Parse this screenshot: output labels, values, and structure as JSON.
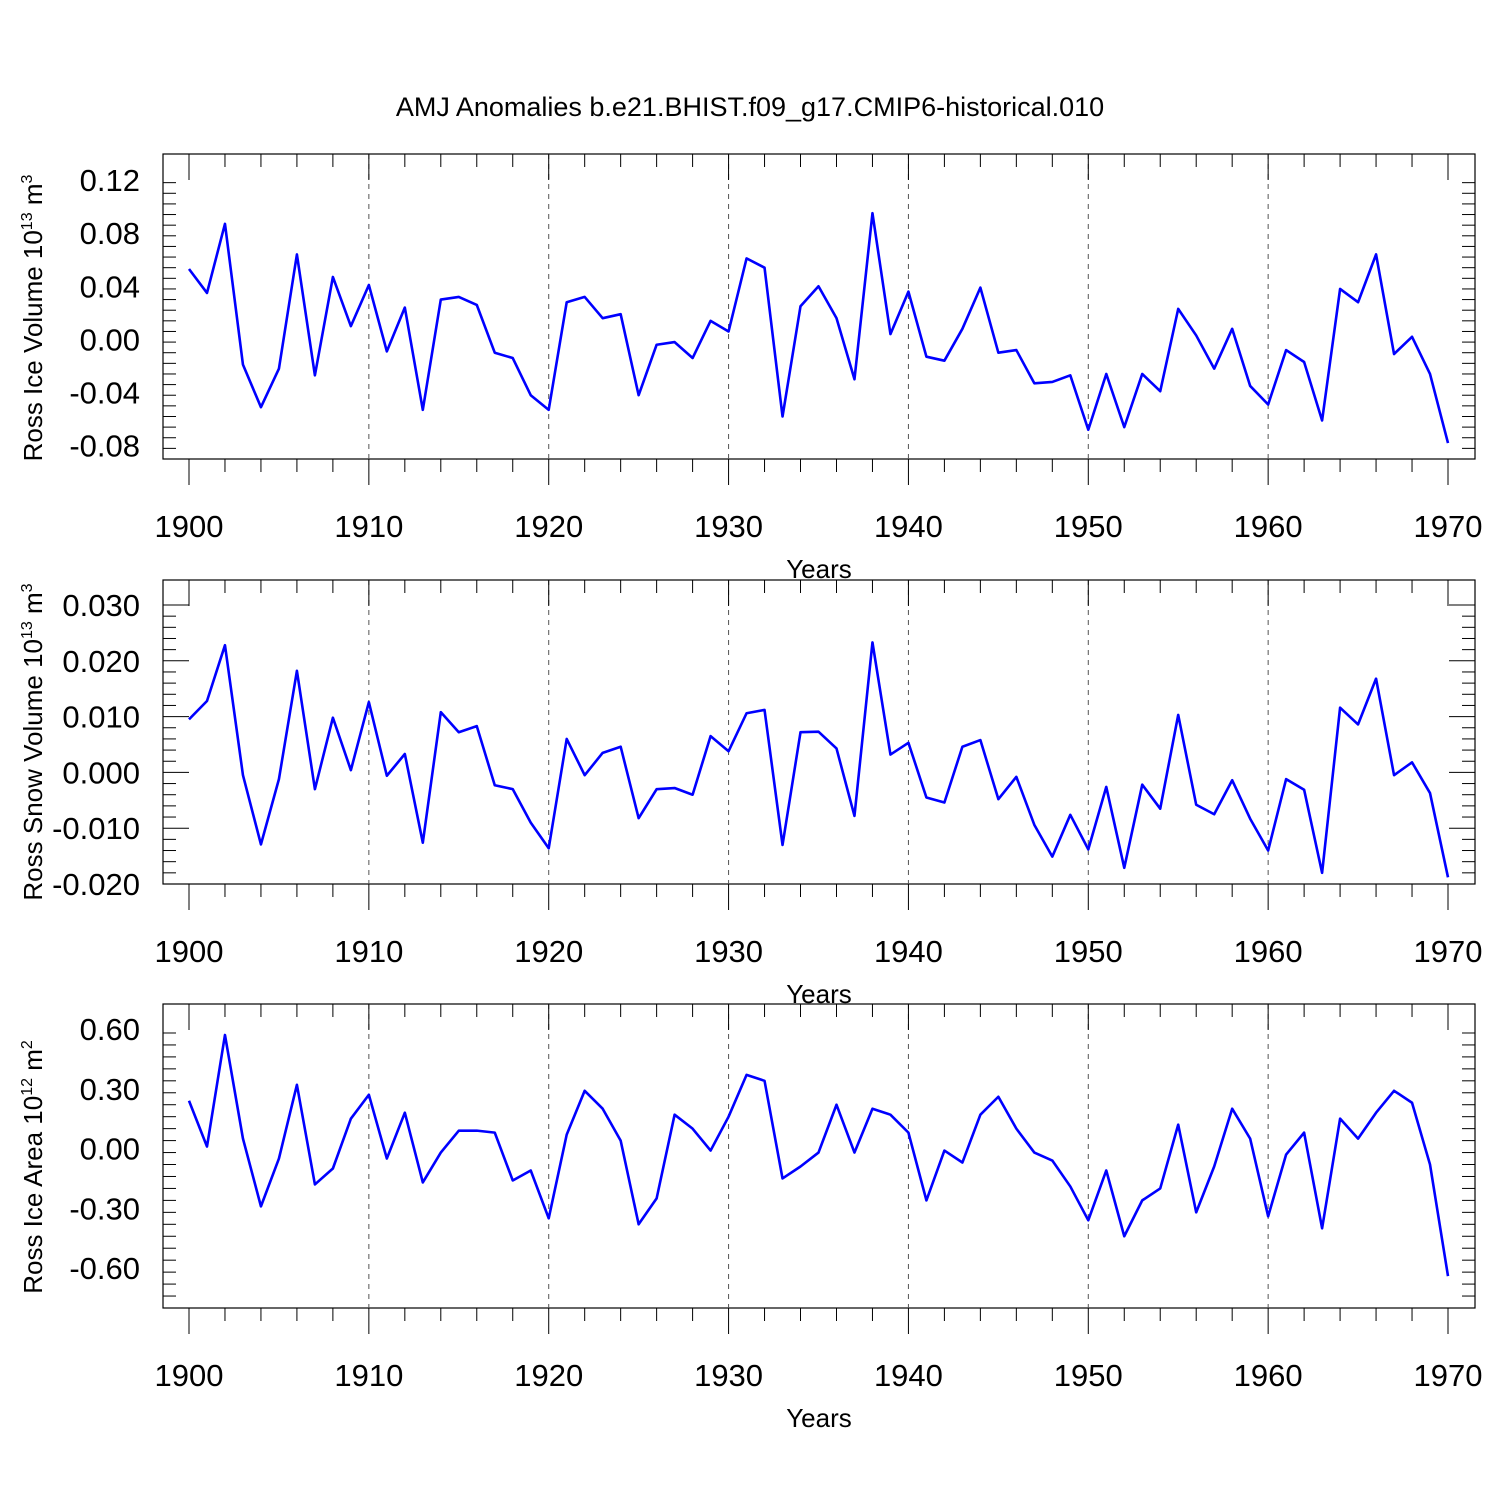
{
  "title": "AMJ Anomalies b.e21.BHIST.f09_g17.CMIP6-historical.010",
  "chart_data": [
    {
      "type": "line",
      "ylabel": "Ross Ice Volume 10",
      "ylabel_exp": "13",
      "ylabel_unit": " m",
      "ylabel_unit_exp": "3",
      "xlabel": "Years",
      "xlim": [
        1900,
        1970
      ],
      "ylim": [
        -0.09,
        0.12
      ],
      "xticks": [
        1900,
        1910,
        1920,
        1930,
        1940,
        1950,
        1960,
        1970
      ],
      "xtick_labels": [
        "1900",
        "1910",
        "1920",
        "1930",
        "1940",
        "1950",
        "1960",
        "1970"
      ],
      "yticks": [
        -0.08,
        -0.04,
        0.0,
        0.04,
        0.08,
        0.12
      ],
      "ytick_labels": [
        "-0.08",
        "-0.04",
        "0.00",
        "0.04",
        "0.08",
        "0.12"
      ],
      "grid": "vertical dashed at major x ticks",
      "color": "#0000ff",
      "x_start": 1900,
      "values": [
        0.053,
        0.035,
        0.087,
        -0.019,
        -0.051,
        -0.022,
        0.064,
        -0.027,
        0.047,
        0.01,
        0.041,
        -0.009,
        0.024,
        -0.053,
        0.03,
        0.032,
        0.026,
        -0.01,
        -0.014,
        -0.042,
        -0.053,
        0.028,
        0.032,
        0.016,
        0.019,
        -0.042,
        -0.004,
        -0.002,
        -0.014,
        0.014,
        0.006,
        0.061,
        0.054,
        -0.058,
        0.025,
        0.04,
        0.016,
        -0.03,
        0.095,
        0.004,
        0.036,
        -0.013,
        -0.016,
        0.008,
        0.039,
        -0.01,
        -0.008,
        -0.033,
        -0.032,
        -0.027,
        -0.068,
        -0.026,
        -0.066,
        -0.026,
        -0.039,
        0.023,
        0.003,
        -0.022,
        0.008,
        -0.035,
        -0.049,
        -0.008,
        -0.017,
        -0.061,
        0.038,
        0.028,
        0.064,
        -0.011,
        0.002,
        -0.026,
        -0.078
      ]
    },
    {
      "type": "line",
      "ylabel": "Ross Snow Volume 10",
      "ylabel_exp": "13",
      "ylabel_unit": " m",
      "ylabel_unit_exp": "3",
      "xlabel": "Years",
      "xlim": [
        1900,
        1970
      ],
      "ylim": [
        -0.02,
        0.03
      ],
      "xticks": [
        1900,
        1910,
        1920,
        1930,
        1940,
        1950,
        1960,
        1970
      ],
      "xtick_labels": [
        "1900",
        "1910",
        "1920",
        "1930",
        "1940",
        "1950",
        "1960",
        "1970"
      ],
      "yticks": [
        -0.02,
        -0.01,
        0.0,
        0.01,
        0.02,
        0.03
      ],
      "ytick_labels": [
        "-0.020",
        "-0.010",
        "0.000",
        "0.010",
        "0.020",
        "0.030"
      ],
      "grid": "vertical dashed at major x ticks",
      "color": "#0000ff",
      "x_start": 1900,
      "values": [
        0.0095,
        0.0128,
        0.0228,
        -0.0005,
        -0.0129,
        -0.0012,
        0.0182,
        -0.003,
        0.0098,
        0.0004,
        0.0126,
        -0.0006,
        0.0033,
        -0.0126,
        0.0108,
        0.0072,
        0.0083,
        -0.0023,
        -0.003,
        -0.009,
        -0.0136,
        0.006,
        -0.0005,
        0.0035,
        0.0046,
        -0.0082,
        -0.003,
        -0.0028,
        -0.004,
        0.0065,
        0.0038,
        0.0106,
        0.0112,
        -0.013,
        0.0072,
        0.0073,
        0.0043,
        -0.0078,
        0.0233,
        0.0032,
        0.0053,
        -0.0045,
        -0.0054,
        0.0046,
        0.0058,
        -0.0048,
        -0.0008,
        -0.0094,
        -0.0151,
        -0.0076,
        -0.0138,
        -0.0026,
        -0.0171,
        -0.0022,
        -0.0065,
        0.0103,
        -0.0058,
        -0.0075,
        -0.0014,
        -0.0083,
        -0.014,
        -0.0012,
        -0.0031,
        -0.018,
        0.0116,
        0.0086,
        0.0168,
        -0.0005,
        0.0018,
        -0.0037,
        -0.0188
      ]
    },
    {
      "type": "line",
      "ylabel": "Ross Ice Area 10",
      "ylabel_exp": "12",
      "ylabel_unit": " m",
      "ylabel_unit_exp": "2",
      "xlabel": "Years",
      "xlim": [
        1900,
        1970
      ],
      "ylim": [
        -0.8,
        0.6
      ],
      "xticks": [
        1900,
        1910,
        1920,
        1930,
        1940,
        1950,
        1960,
        1970
      ],
      "xtick_labels": [
        "1900",
        "1910",
        "1920",
        "1930",
        "1940",
        "1950",
        "1960",
        "1970"
      ],
      "yticks": [
        -0.6,
        -0.3,
        0.0,
        0.3,
        0.6
      ],
      "ytick_labels": [
        "-0.60",
        "-0.30",
        "0.00",
        "0.30",
        "0.60"
      ],
      "grid": "vertical dashed at major x ticks",
      "color": "#0000ff",
      "x_start": 1900,
      "values": [
        0.24,
        0.01,
        0.57,
        0.05,
        -0.29,
        -0.05,
        0.32,
        -0.18,
        -0.1,
        0.15,
        0.27,
        -0.05,
        0.18,
        -0.17,
        -0.02,
        0.09,
        0.09,
        0.08,
        -0.16,
        -0.11,
        -0.35,
        0.07,
        0.29,
        0.2,
        0.04,
        -0.38,
        -0.25,
        0.17,
        0.1,
        -0.01,
        0.16,
        0.37,
        0.34,
        -0.15,
        -0.09,
        -0.02,
        0.22,
        -0.02,
        0.2,
        0.17,
        0.08,
        -0.26,
        -0.01,
        -0.07,
        0.17,
        0.26,
        0.1,
        -0.02,
        -0.06,
        -0.19,
        -0.36,
        -0.11,
        -0.44,
        -0.26,
        -0.2,
        0.12,
        -0.32,
        -0.09,
        0.2,
        0.05,
        -0.34,
        -0.03,
        0.08,
        -0.4,
        0.15,
        0.05,
        0.18,
        0.29,
        0.23,
        -0.08,
        -0.64
      ]
    }
  ]
}
